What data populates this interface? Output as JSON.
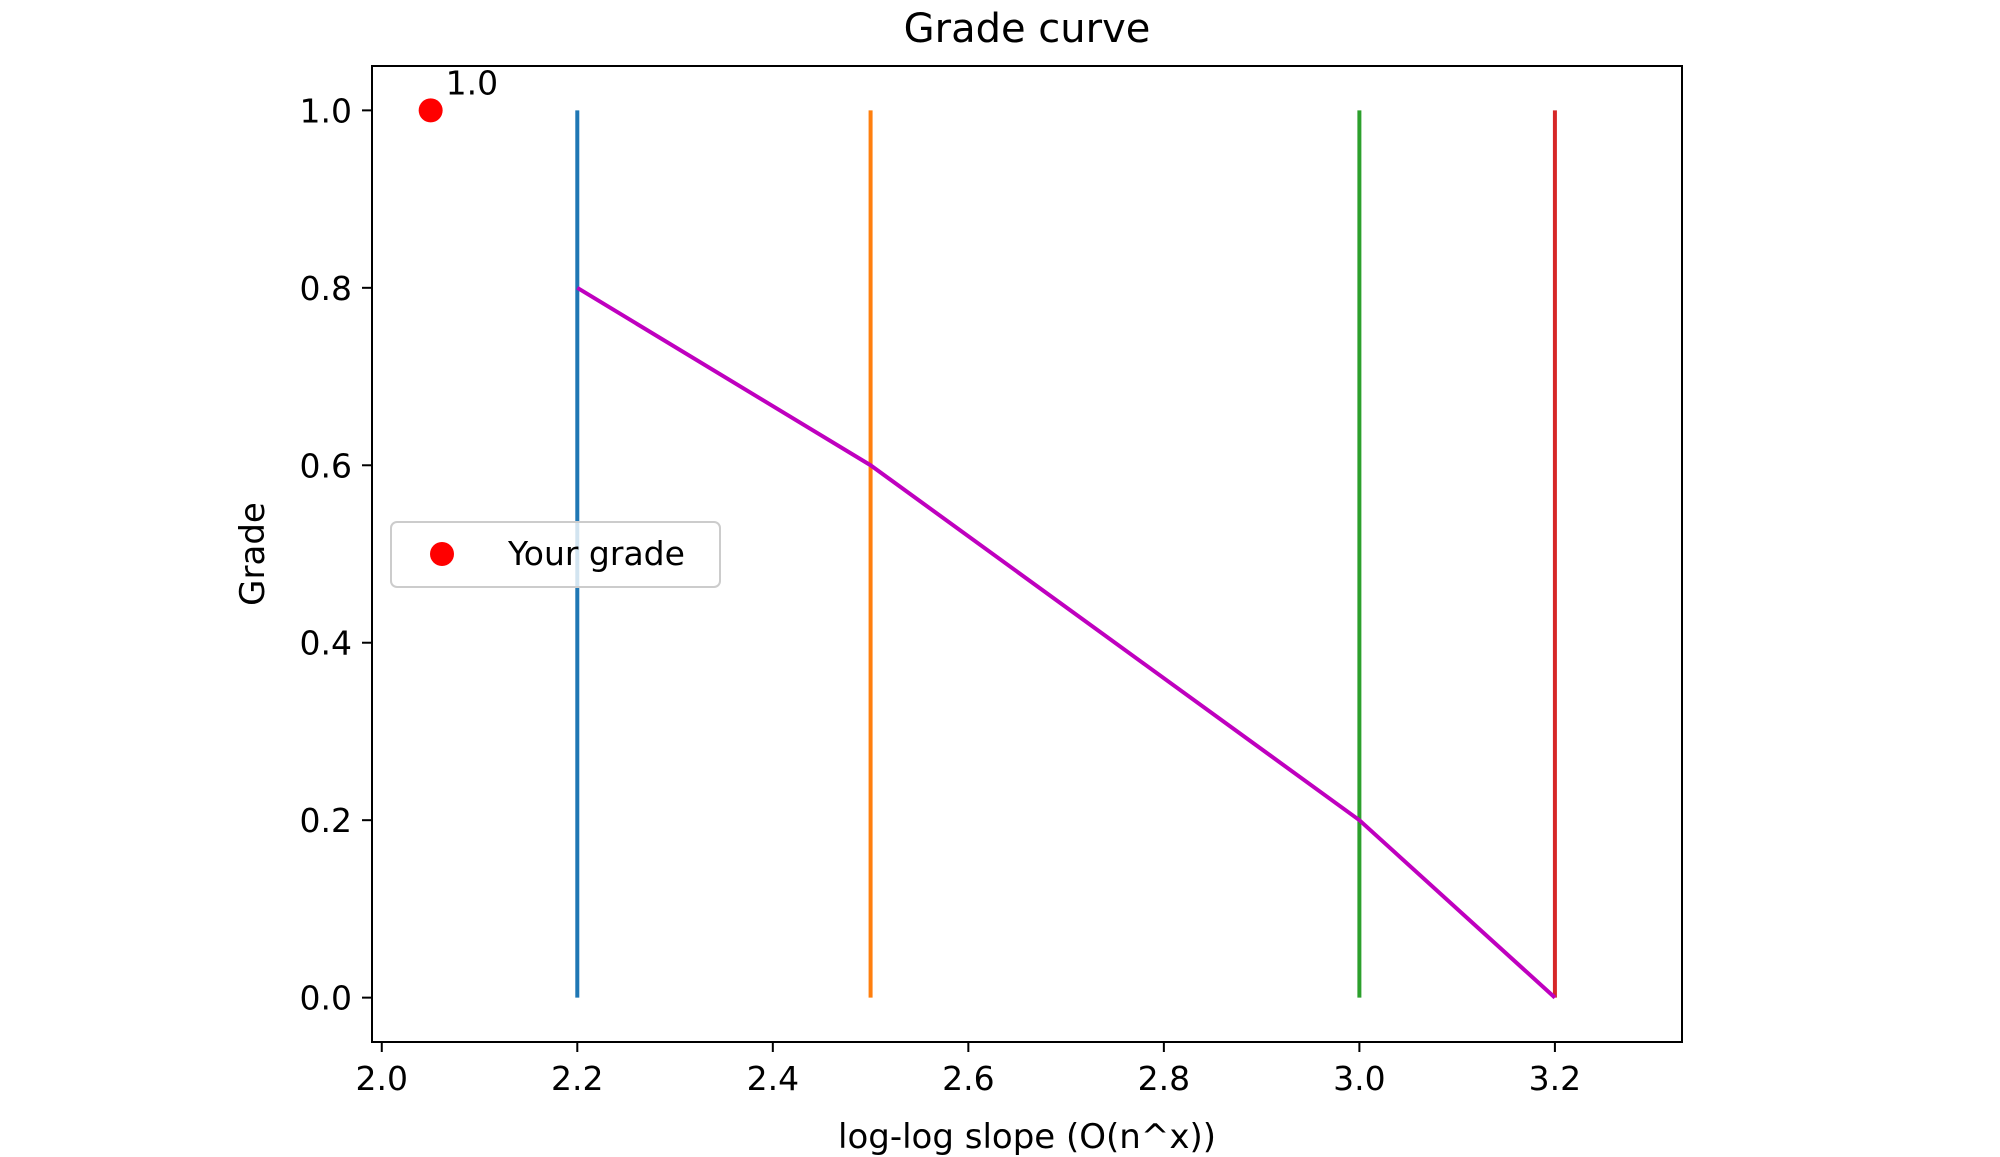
{
  "chart_data": {
    "type": "line",
    "title": "Grade curve",
    "xlabel": "log-log slope (O(n^x))",
    "ylabel": "Grade",
    "xlim": [
      1.99,
      3.33
    ],
    "ylim": [
      -0.05,
      1.05
    ],
    "xticks": [
      "2.0",
      "2.2",
      "2.4",
      "2.6",
      "2.8",
      "3.0",
      "3.2"
    ],
    "yticks": [
      "0.0",
      "0.2",
      "0.4",
      "0.6",
      "0.8",
      "1.0"
    ],
    "grid": false,
    "curve": {
      "color": "#bf00bf",
      "x": [
        2.2,
        2.5,
        3.0,
        3.2
      ],
      "y": [
        0.8,
        0.6,
        0.2,
        0.0
      ]
    },
    "thresholds": [
      {
        "x": 2.2,
        "color": "#1f77b4"
      },
      {
        "x": 2.5,
        "color": "#ff7f0e"
      },
      {
        "x": 3.0,
        "color": "#2ca02c"
      },
      {
        "x": 3.2,
        "color": "#d62728"
      }
    ],
    "threshold_range": [
      0.0,
      1.0
    ],
    "point": {
      "name": "Your grade",
      "x": 2.05,
      "y": 1.0,
      "label": "1.0",
      "color": "#ff0000"
    },
    "legend": {
      "location": "center-left",
      "entries": [
        "Your grade"
      ]
    }
  }
}
